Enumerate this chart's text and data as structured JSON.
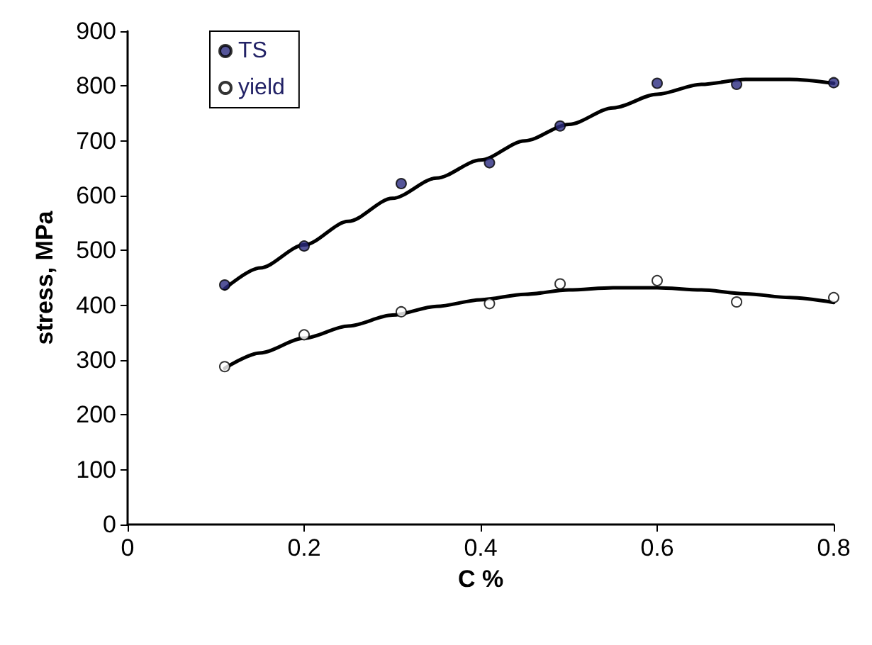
{
  "chart_data": {
    "type": "scatter",
    "xlabel": "C %",
    "ylabel": "stress, MPa",
    "xlim": [
      0,
      0.8
    ],
    "xticks": [
      0,
      0.2,
      0.4,
      0.6,
      0.8
    ],
    "ylim": [
      0,
      900
    ],
    "yticks": [
      0,
      100,
      200,
      300,
      400,
      500,
      600,
      700,
      800,
      900
    ],
    "grid": false,
    "legend": "top left",
    "series": [
      {
        "name": "TS",
        "marker": "circle",
        "color": "#2b2b80",
        "x": [
          0.11,
          0.2,
          0.31,
          0.41,
          0.49,
          0.6,
          0.69,
          0.8
        ],
        "values": [
          437,
          508,
          622,
          660,
          727,
          805,
          803,
          806
        ]
      },
      {
        "name": "yield",
        "marker": "circle",
        "color": "#ffffff",
        "x": [
          0.11,
          0.2,
          0.31,
          0.41,
          0.49,
          0.6,
          0.69,
          0.8
        ],
        "values": [
          288,
          346,
          388,
          403,
          439,
          445,
          406,
          414
        ]
      },
      {
        "type": "line",
        "marker": "none",
        "color": "#000000",
        "x": [
          0.11,
          0.15,
          0.2,
          0.25,
          0.3,
          0.35,
          0.4,
          0.45,
          0.5,
          0.55,
          0.6,
          0.65,
          0.7,
          0.75,
          0.8
        ],
        "values": [
          430,
          468,
          510,
          553,
          595,
          632,
          665,
          700,
          730,
          760,
          785,
          803,
          812,
          812,
          805
        ]
      },
      {
        "type": "line",
        "marker": "none",
        "color": "#000000",
        "x": [
          0.11,
          0.15,
          0.2,
          0.25,
          0.3,
          0.35,
          0.4,
          0.45,
          0.5,
          0.55,
          0.6,
          0.65,
          0.7,
          0.75,
          0.8
        ],
        "values": [
          285,
          313,
          340,
          362,
          382,
          398,
          410,
          420,
          428,
          432,
          432,
          428,
          421,
          414,
          405
        ]
      }
    ]
  }
}
